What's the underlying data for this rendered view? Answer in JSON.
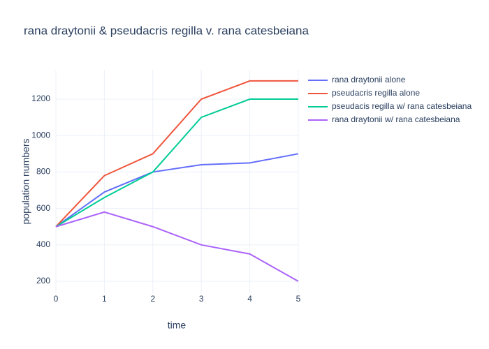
{
  "chart_data": {
    "type": "line",
    "title": "rana draytonii & pseudacris regilla v. rana catesbeiana",
    "x_label": "time",
    "y_label": "population numbers",
    "x": [
      0,
      1,
      2,
      3,
      4,
      5
    ],
    "series": [
      {
        "name": "rana draytonii alone",
        "color": "#636efa",
        "values": [
          500,
          690,
          800,
          840,
          850,
          900
        ]
      },
      {
        "name": "pseudacris regilla alone",
        "color": "#EF553B",
        "values": [
          500,
          780,
          900,
          1200,
          1300,
          1300
        ]
      },
      {
        "name": "pseudacis regilla w/ rana catesbeiana",
        "color": "#00cc96",
        "values": [
          500,
          660,
          800,
          1100,
          1200,
          1200
        ]
      },
      {
        "name": "rana draytonii w/ rana catesbeiana",
        "color": "#ab63fa",
        "values": [
          500,
          580,
          500,
          400,
          350,
          200
        ]
      }
    ],
    "xlim": [
      0,
      5
    ],
    "xticks": [
      0,
      1,
      2,
      3,
      4,
      5
    ],
    "ylim": [
      135,
      1361
    ],
    "yticks": [
      200,
      400,
      600,
      800,
      1000,
      1200
    ],
    "grid": true,
    "legend": "top-right"
  }
}
